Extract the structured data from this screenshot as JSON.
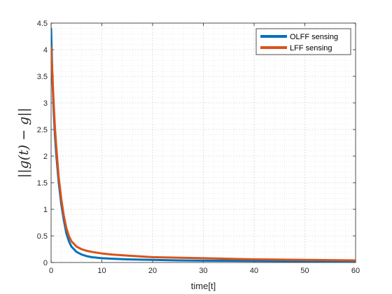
{
  "chart_data": {
    "type": "line",
    "title": "",
    "xlabel": "time[t]",
    "ylabel": "||g(t) − g||",
    "xlim": [
      0,
      60
    ],
    "ylim": [
      0,
      4.5
    ],
    "x_ticks": [
      0,
      10,
      20,
      30,
      40,
      50,
      60
    ],
    "y_ticks": [
      0,
      0.5,
      1,
      1.5,
      2,
      2.5,
      3,
      3.5,
      4,
      4.5
    ],
    "x_tick_labels": [
      "0",
      "10",
      "20",
      "30",
      "40",
      "50",
      "60"
    ],
    "y_tick_labels": [
      "0",
      "0.5",
      "1",
      "1.5",
      "2",
      "2.5",
      "3",
      "3.5",
      "4",
      "4.5"
    ],
    "grid": true,
    "minor_grid": true,
    "legend_position": "top-right",
    "series": [
      {
        "name": "OLFF sensing",
        "color": "#0072BD",
        "x": [
          0,
          0.25,
          0.5,
          0.75,
          1,
          1.5,
          2,
          2.5,
          3,
          3.5,
          4,
          5,
          6,
          7,
          8,
          10,
          12,
          15,
          20,
          25,
          30,
          40,
          50,
          60
        ],
        "y": [
          4.4,
          3.5,
          2.85,
          2.4,
          2.05,
          1.5,
          1.1,
          0.8,
          0.55,
          0.4,
          0.3,
          0.2,
          0.15,
          0.12,
          0.1,
          0.08,
          0.07,
          0.06,
          0.05,
          0.04,
          0.035,
          0.03,
          0.025,
          0.02
        ]
      },
      {
        "name": "LFF sensing",
        "color": "#D95319",
        "x": [
          0,
          0.25,
          0.5,
          0.75,
          1,
          1.5,
          2,
          2.5,
          3,
          3.5,
          4,
          5,
          6,
          7,
          8,
          10,
          12,
          15,
          20,
          25,
          30,
          40,
          50,
          60
        ],
        "y": [
          4.05,
          3.55,
          3.0,
          2.55,
          2.2,
          1.6,
          1.2,
          0.88,
          0.65,
          0.5,
          0.4,
          0.3,
          0.25,
          0.22,
          0.2,
          0.17,
          0.15,
          0.13,
          0.1,
          0.09,
          0.08,
          0.06,
          0.05,
          0.04
        ]
      }
    ]
  }
}
